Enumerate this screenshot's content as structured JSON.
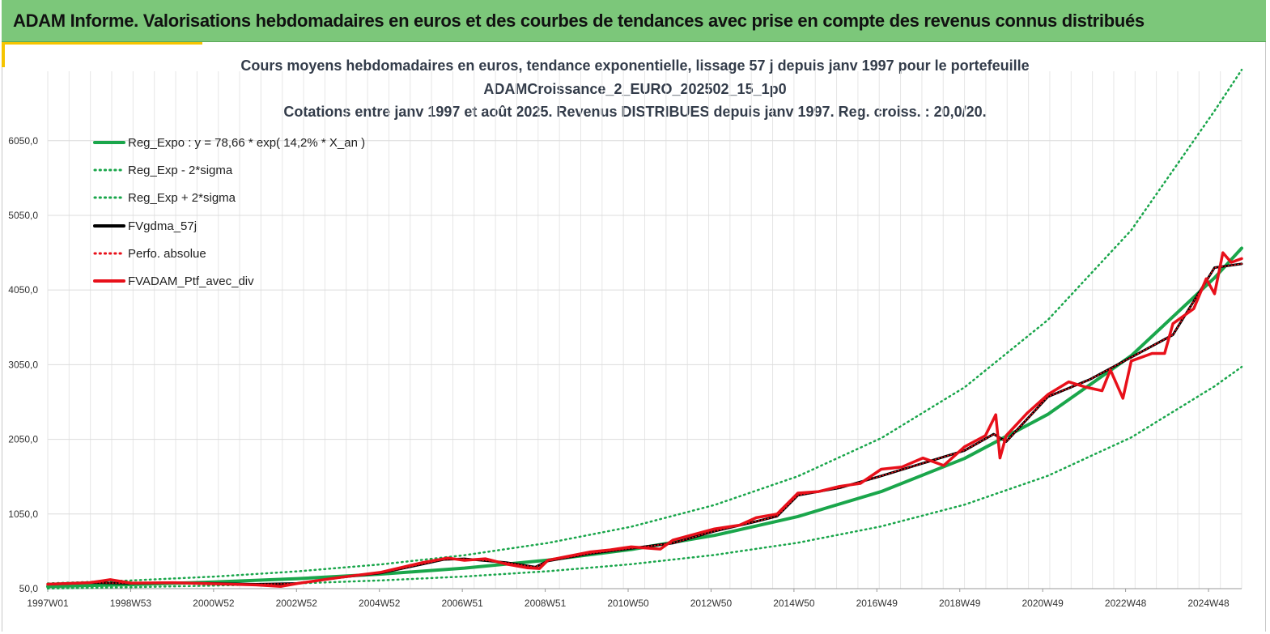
{
  "banner": {
    "title": "ADAM Informe. Valorisations hebdomadaires en euros et des courbes de tendances avec prise en compte des revenus connus distribués"
  },
  "chart_data": {
    "type": "line",
    "title_lines": [
      "Cours moyens hebdomadaires  en euros, tendance exponentielle, lissage 57 j depuis janv 1997 pour le portefeuille",
      "ADAMCroissance_2_EURO_202502_15_1p0",
      "Cotations  entre janv 1997 et août 2025. Revenus DISTRIBUES depuis janv 1997. Reg. croiss. : 20,0/20."
    ],
    "xlabel": "",
    "ylabel": "",
    "x_tick_labels": [
      "1997W01",
      "1998W53",
      "2000W52",
      "2002W52",
      "2004W52",
      "2006W51",
      "2008W51",
      "2010W50",
      "2012W50",
      "2014W50",
      "2016W49",
      "2018W49",
      "2020W49",
      "2022W48",
      "2024W48"
    ],
    "y_tick_values": [
      50,
      1050,
      2050,
      3050,
      4050,
      5050,
      6050
    ],
    "y_tick_labels": [
      "50,0",
      "1050,0",
      "2050,0",
      "3050,0",
      "4050,0",
      "5050,0",
      "6050,0"
    ],
    "ylim": [
      50,
      6980
    ],
    "xlim": [
      1997.0,
      2025.65
    ],
    "grid": true,
    "legend_position": "top-left",
    "colors": {
      "green": "#1aa64b",
      "black": "#000000",
      "red": "#e8101a"
    },
    "series": [
      {
        "name": "Reg_Expo : y = 78,66 * exp( 14,2% *  X_an )",
        "style": "solid",
        "color": "#1aa64b",
        "x": [
          1997,
          1999,
          2001,
          2003,
          2005,
          2007,
          2009,
          2011,
          2013,
          2015,
          2017,
          2019,
          2021,
          2023,
          2025,
          2025.65
        ],
        "y": [
          79,
          104,
          139,
          185,
          245,
          326,
          433,
          575,
          764,
          1016,
          1350,
          1794,
          2385,
          3170,
          4213,
          4610
        ]
      },
      {
        "name": "Reg_Exp - 2*sigma",
        "style": "dotted",
        "color": "#1aa64b",
        "x": [
          1997,
          1999,
          2001,
          2003,
          2005,
          2007,
          2009,
          2011,
          2013,
          2015,
          2017,
          2019,
          2021,
          2023,
          2025,
          2025.65
        ],
        "y": [
          52,
          69,
          91,
          121,
          161,
          213,
          283,
          377,
          501,
          665,
          884,
          1175,
          1562,
          2076,
          2760,
          3020
        ]
      },
      {
        "name": "Reg_Exp + 2*sigma",
        "style": "dotted",
        "color": "#1aa64b",
        "x": [
          1997,
          1999,
          2001,
          2003,
          2005,
          2007,
          2009,
          2011,
          2013,
          2015,
          2017,
          2019,
          2021,
          2023,
          2025,
          2025.65
        ],
        "y": [
          120,
          160,
          212,
          282,
          375,
          498,
          662,
          880,
          1170,
          1555,
          2066,
          2746,
          3650,
          4851,
          6450,
          7000
        ]
      },
      {
        "name": "FVgdma_57j",
        "style": "solid",
        "color": "#000000",
        "x": [
          1997,
          1998,
          1999,
          2000,
          2001,
          2002,
          2003,
          2004,
          2005,
          2006,
          2006.5,
          2007,
          2008,
          2008.7,
          2009,
          2010,
          2011,
          2012,
          2013,
          2014,
          2014.5,
          2015,
          2016,
          2017,
          2018,
          2019,
          2019.7,
          2020,
          2021,
          2022,
          2023,
          2024,
          2025,
          2025.65
        ],
        "y": [
          110,
          130,
          120,
          130,
          120,
          110,
          120,
          200,
          260,
          380,
          440,
          450,
          400,
          340,
          420,
          520,
          590,
          660,
          820,
          950,
          1020,
          1300,
          1400,
          1560,
          1730,
          1900,
          2120,
          2020,
          2620,
          2850,
          3150,
          3450,
          4350,
          4400
        ]
      },
      {
        "name": "Perfo. absolue",
        "style": "dotted",
        "color": "#e8101a",
        "x": [
          1997,
          1998,
          1999,
          2000,
          2001,
          2002,
          2003,
          2004,
          2005,
          2006,
          2006.5,
          2007,
          2008,
          2008.7,
          2009,
          2010,
          2011,
          2012,
          2013,
          2014,
          2014.5,
          2015,
          2016,
          2017,
          2018,
          2019,
          2019.7,
          2020,
          2021,
          2022,
          2023,
          2024,
          2025,
          2025.65
        ],
        "y": [
          110,
          130,
          120,
          130,
          120,
          110,
          120,
          200,
          260,
          380,
          440,
          450,
          400,
          340,
          420,
          520,
          590,
          660,
          820,
          950,
          1020,
          1300,
          1400,
          1560,
          1730,
          1900,
          2120,
          2020,
          2620,
          2850,
          3150,
          3450,
          4350,
          4400
        ]
      },
      {
        "name": "FVADAM_Ptf_avec_div",
        "style": "solid",
        "color": "#e8101a",
        "x": [
          1997,
          1998,
          1998.5,
          1999,
          2000,
          2001,
          2002,
          2002.6,
          2003,
          2004,
          2005,
          2006,
          2006.6,
          2007,
          2007.5,
          2008,
          2008.5,
          2008.8,
          2009,
          2010,
          2010.5,
          2011,
          2011.7,
          2012,
          2013,
          2013.6,
          2014,
          2014.5,
          2015,
          2015.5,
          2016,
          2016.5,
          2017,
          2017.5,
          2018,
          2018.5,
          2019,
          2019.5,
          2019.75,
          2019.85,
          2020,
          2020.5,
          2021,
          2021.5,
          2021.9,
          2022.3,
          2022.5,
          2022.8,
          2023,
          2023.5,
          2023.8,
          2024,
          2024.5,
          2024.8,
          2025,
          2025.2,
          2025.4,
          2025.65
        ],
        "y": [
          110,
          130,
          170,
          125,
          130,
          115,
          100,
          80,
          120,
          200,
          270,
          400,
          460,
          430,
          450,
          380,
          330,
          320,
          430,
          540,
          570,
          610,
          580,
          700,
          850,
          900,
          1000,
          1050,
          1330,
          1350,
          1420,
          1460,
          1650,
          1680,
          1800,
          1700,
          1950,
          2100,
          2380,
          1800,
          2100,
          2400,
          2650,
          2820,
          2750,
          2700,
          2980,
          2600,
          3100,
          3200,
          3200,
          3600,
          3800,
          4200,
          4000,
          4550,
          4420,
          4470
        ]
      }
    ]
  }
}
